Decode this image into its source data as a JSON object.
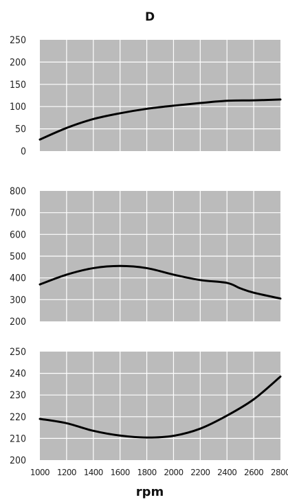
{
  "title": "D",
  "xlabel": "rpm",
  "colors": {
    "panel": "#bbbbbb",
    "grid": "#ffffff",
    "line": "#000000"
  },
  "chart_data": [
    {
      "type": "line",
      "x": [
        1000,
        1200,
        1400,
        1600,
        1800,
        2000,
        2200,
        2400,
        2600,
        2800
      ],
      "values": [
        26,
        52,
        72,
        85,
        95,
        102,
        108,
        113,
        114,
        116
      ],
      "ylim": [
        0,
        250
      ],
      "yticks": [
        0,
        50,
        100,
        150,
        200,
        250
      ],
      "xlim": [
        1000,
        2800
      ]
    },
    {
      "type": "line",
      "x": [
        1000,
        1200,
        1400,
        1600,
        1800,
        2000,
        2200,
        2400,
        2500,
        2600,
        2800
      ],
      "values": [
        370,
        415,
        445,
        455,
        445,
        415,
        390,
        377,
        352,
        332,
        305
      ],
      "ylim": [
        200,
        800
      ],
      "yticks": [
        200,
        300,
        400,
        500,
        600,
        700,
        800
      ],
      "xlim": [
        1000,
        2800
      ]
    },
    {
      "type": "line",
      "x": [
        1000,
        1200,
        1400,
        1600,
        1800,
        2000,
        2200,
        2400,
        2600,
        2800
      ],
      "values": [
        219,
        217,
        213.5,
        211.3,
        210.4,
        211.2,
        214.5,
        220.5,
        228,
        238.5
      ],
      "ylim": [
        200,
        250
      ],
      "yticks": [
        200,
        210,
        220,
        230,
        240,
        250
      ],
      "xlim": [
        1000,
        2800
      ],
      "xticks": [
        1000,
        1200,
        1400,
        1600,
        1800,
        2000,
        2200,
        2400,
        2600,
        2800
      ]
    }
  ]
}
